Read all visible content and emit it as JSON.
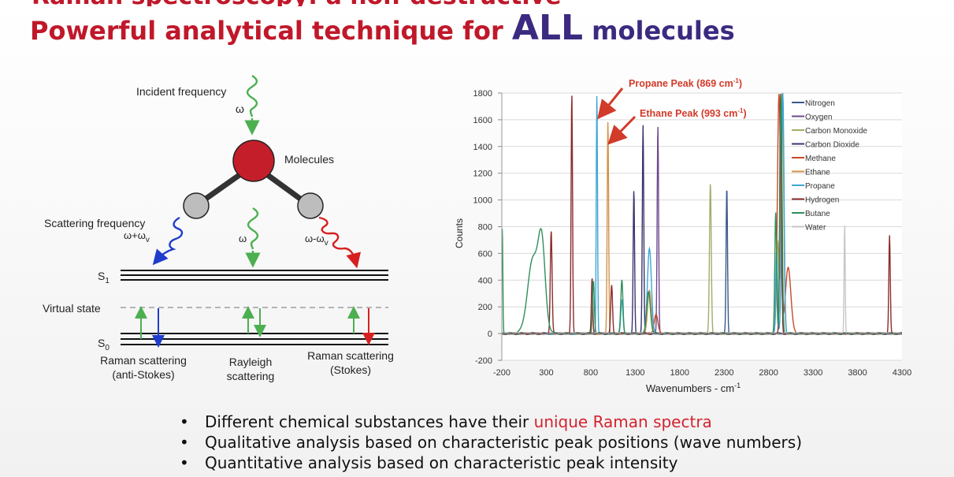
{
  "header": {
    "cut_title": "Raman spectroscopy: a non-destructive",
    "title_part1": "Powerful analytical technique for ",
    "title_all": "ALL",
    "title_part2": " molecules"
  },
  "diagram": {
    "incident_label": "Incident frequency",
    "incident_omega": "ω",
    "molecules_label": "Molecules",
    "scattering_label": "Scattering frequency",
    "anti_stokes_freq": "ω+ω",
    "anti_stokes_sub": "v",
    "rayleigh_freq": "ω",
    "stokes_freq": "ω-ω",
    "stokes_sub": "v",
    "s1_label": "S",
    "s1_sub": "1",
    "virtual_state_label": "Virtual state",
    "s0_label": "S",
    "s0_sub": "0",
    "anti_stokes_line1": "Raman scattering",
    "anti_stokes_line2": "(anti-Stokes)",
    "rayleigh_line1": "Rayleigh",
    "rayleigh_line2": "scattering",
    "stokes_line1": "Raman scattering",
    "stokes_line2": "(Stokes)",
    "colors": {
      "incident": "#4caf50",
      "anti_stokes": "#1f3ccc",
      "stokes": "#d62020",
      "molecule": "#c41e2a",
      "atom": "#bdbdbd"
    }
  },
  "chart_data": {
    "type": "line",
    "title": "",
    "xlabel": "Wavenumbers - cm",
    "xlabel_sup": "-1",
    "ylabel": "Counts",
    "xlim": [
      -200,
      4300
    ],
    "ylim": [
      -200,
      1800
    ],
    "xticks": [
      "-200",
      "300",
      "800",
      "1300",
      "1800",
      "2300",
      "2800",
      "3300",
      "3800",
      "4300"
    ],
    "xtick_values": [
      -200,
      300,
      800,
      1300,
      1800,
      2300,
      2800,
      3300,
      3800,
      4300
    ],
    "yticks": [
      "-200",
      "0",
      "200",
      "400",
      "600",
      "800",
      "1000",
      "1200",
      "1400",
      "1600",
      "1800"
    ],
    "ytick_values": [
      -200,
      0,
      200,
      400,
      600,
      800,
      1000,
      1200,
      1400,
      1600,
      1800
    ],
    "grid": true,
    "legend_position": "top-right",
    "annotations": [
      {
        "text": "Propane Peak (869 cm",
        "sup": "-1",
        "close": ")",
        "x": 869,
        "y": 1800
      },
      {
        "text": "Ethane Peak (993 cm",
        "sup": "-1",
        "close": ")",
        "x": 993,
        "y": 1450
      }
    ],
    "series": [
      {
        "name": "Nitrogen",
        "color": "#3a5a8c",
        "peaks": [
          [
            2330,
            1100,
            8
          ]
        ]
      },
      {
        "name": "Oxygen",
        "color": "#6e4a8e",
        "peaks": [
          [
            1555,
            1560,
            8
          ]
        ]
      },
      {
        "name": "Carbon Monoxide",
        "color": "#9fae6a",
        "peaks": [
          [
            2145,
            1120,
            10
          ]
        ]
      },
      {
        "name": "Carbon Dioxide",
        "color": "#3c3470",
        "peaks": [
          [
            1285,
            1080,
            8
          ],
          [
            1388,
            1560,
            8
          ]
        ]
      },
      {
        "name": "Methane",
        "color": "#c8492b",
        "peaks": [
          [
            2917,
            1800,
            18
          ],
          [
            3020,
            500,
            30
          ],
          [
            1534,
            150,
            20
          ]
        ]
      },
      {
        "name": "Ethane",
        "color": "#d3924a",
        "peaks": [
          [
            993,
            1600,
            8
          ],
          [
            1460,
            320,
            20
          ],
          [
            2955,
            1800,
            15
          ],
          [
            2900,
            700,
            15
          ]
        ]
      },
      {
        "name": "Propane",
        "color": "#3fa7d6",
        "peaks": [
          [
            869,
            1800,
            7
          ],
          [
            1460,
            640,
            22
          ],
          [
            2890,
            620,
            10
          ],
          [
            2960,
            1800,
            14
          ],
          [
            1150,
            250,
            12
          ]
        ]
      },
      {
        "name": "Hydrogen",
        "color": "#8b2c2c",
        "peaks": [
          [
            355,
            770,
            10
          ],
          [
            587,
            1800,
            8
          ],
          [
            815,
            420,
            8
          ],
          [
            1035,
            360,
            10
          ],
          [
            4160,
            730,
            8
          ],
          [
            2935,
            1800,
            10
          ]
        ]
      },
      {
        "name": "Butane",
        "color": "#2f8f5b",
        "peaks": [
          [
            -195,
            800,
            6
          ],
          [
            150,
            550,
            60
          ],
          [
            250,
            620,
            40
          ],
          [
            830,
            400,
            10
          ],
          [
            1150,
            400,
            12
          ],
          [
            1450,
            320,
            20
          ],
          [
            2940,
            1800,
            12
          ],
          [
            2880,
            900,
            10
          ]
        ]
      },
      {
        "name": "Water",
        "color": "#c7c7c7",
        "peaks": [
          [
            3655,
            820,
            6
          ]
        ]
      }
    ]
  },
  "bullets": [
    {
      "text": "Different chemical substances have their ",
      "highlight": "unique Raman spectra"
    },
    {
      "text": "Qualitative analysis based on characteristic peak positions (wave numbers)",
      "highlight": ""
    },
    {
      "text": "Quantitative analysis based on characteristic peak intensity",
      "highlight": ""
    }
  ]
}
